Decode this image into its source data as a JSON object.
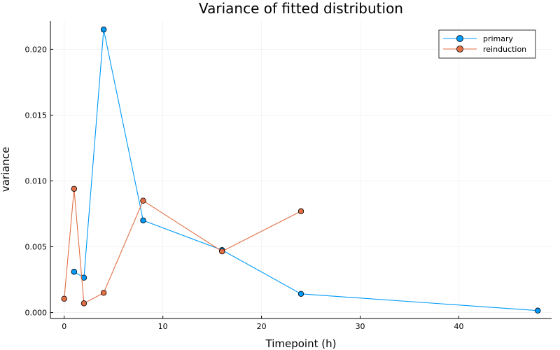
{
  "chart_data": {
    "type": "line",
    "title": "Variance of fitted distribution",
    "xlabel": "Timepoint (h)",
    "ylabel": "variance",
    "xlim": [
      -1.4,
      49.4
    ],
    "ylim": [
      -0.00045,
      0.02215
    ],
    "xticks": [
      0,
      10,
      20,
      30,
      40
    ],
    "xtick_labels": [
      "0",
      "10",
      "20",
      "30",
      "40"
    ],
    "yticks": [
      0.0,
      0.005,
      0.01,
      0.015,
      0.02
    ],
    "ytick_labels": [
      "0.000",
      "0.005",
      "0.010",
      "0.015",
      "0.020"
    ],
    "grid": true,
    "legend_position": "top-right",
    "series": [
      {
        "name": "primary",
        "color": "#009af9",
        "x": [
          1,
          2,
          4,
          8,
          16,
          24,
          48
        ],
        "y": [
          0.0031,
          0.00265,
          0.0215,
          0.007,
          0.00475,
          0.00142,
          0.00015
        ]
      },
      {
        "name": "reinduction",
        "color": "#e26f46",
        "x": [
          0,
          1,
          2,
          4,
          8,
          16,
          24
        ],
        "y": [
          0.00105,
          0.0094,
          0.0007,
          0.0015,
          0.0085,
          0.00465,
          0.0077
        ]
      }
    ]
  }
}
